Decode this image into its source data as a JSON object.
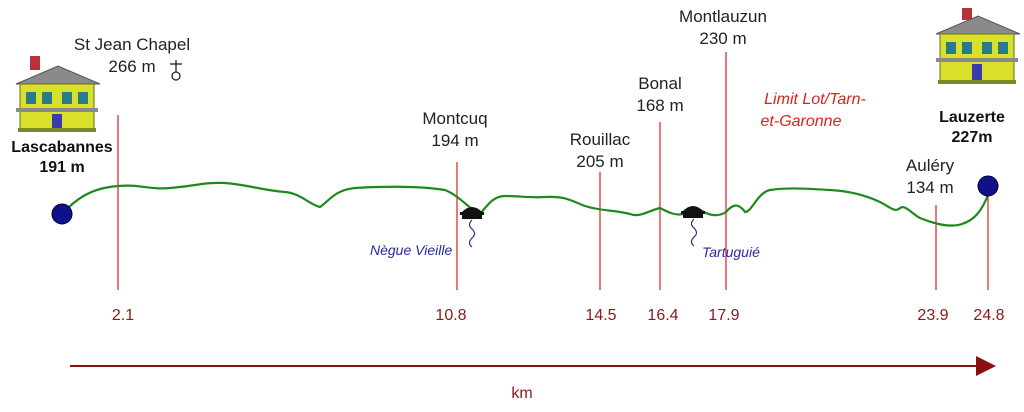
{
  "start": {
    "name": "Lascabannes",
    "alt": "191 m"
  },
  "end": {
    "name": "Lauzerte",
    "alt": "227m"
  },
  "waypoints": [
    {
      "line1": "St Jean Chapel",
      "line2": "266 m",
      "km": "2.1",
      "icon": "cross-chapel-icon"
    },
    {
      "line1": "Montcuq",
      "line2": "194 m",
      "km": "10.8"
    },
    {
      "line1": "Rouillac",
      "line2": "205 m",
      "km": "14.5"
    },
    {
      "line1": "Bonal",
      "line2": "168 m",
      "km": "16.4"
    },
    {
      "line1": "Montlauzun",
      "line2": "230 m",
      "km": "17.9"
    },
    {
      "line1": "Auléry",
      "line2": "134 m",
      "km": "23.9"
    },
    {
      "line1": "",
      "line2": "",
      "km": "24.8"
    }
  ],
  "rivers": [
    {
      "name": "Nègue Vieille",
      "icon": "bridge-icon"
    },
    {
      "name": "Tartuguié",
      "icon": "bridge-icon"
    }
  ],
  "boundary": {
    "line1": "Limit Lot/Tarn-",
    "line2": "et-Garonne"
  },
  "axis": {
    "unit": "km"
  },
  "colors": {
    "profile": "#1e8a1e",
    "marker": "#e03030",
    "axis": "#8a1010",
    "dot": "#10108a",
    "river": "#2a2aa0"
  }
}
